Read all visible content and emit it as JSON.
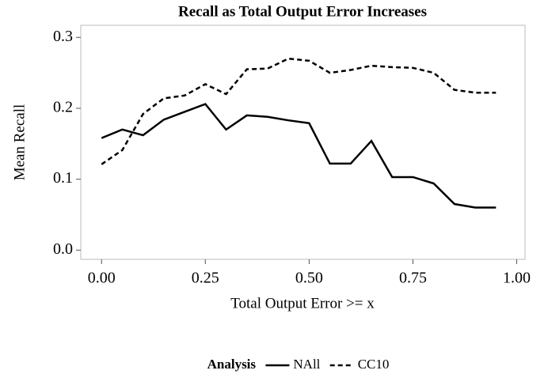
{
  "chart_data": {
    "type": "line",
    "title": "Recall as Total Output Error Increases",
    "xlabel": "Total Output Error >= x",
    "ylabel": "Mean Recall",
    "legend_title": "Analysis",
    "legend": "bottom",
    "grid": false,
    "x": [
      0,
      0.05,
      0.1,
      0.15,
      0.2,
      0.25,
      0.3,
      0.35,
      0.4,
      0.45,
      0.5,
      0.55,
      0.6,
      0.65,
      0.7,
      0.75,
      0.8,
      0.85,
      0.9,
      0.95
    ],
    "series": [
      {
        "name": "NAll",
        "color": "#000000",
        "dash": "solid",
        "values": [
          0.158,
          0.17,
          0.162,
          0.184,
          0.195,
          0.206,
          0.17,
          0.19,
          0.188,
          0.183,
          0.179,
          0.122,
          0.122,
          0.154,
          0.103,
          0.103,
          0.094,
          0.065,
          0.06,
          0.06
        ]
      },
      {
        "name": "CC10",
        "color": "#000000",
        "dash": "dashed",
        "values": [
          0.121,
          0.141,
          0.192,
          0.214,
          0.218,
          0.234,
          0.22,
          0.255,
          0.256,
          0.27,
          0.267,
          0.25,
          0.254,
          0.26,
          0.258,
          0.257,
          0.25,
          0.226,
          0.222,
          0.222
        ]
      }
    ],
    "xlim": [
      -0.05,
      1.02
    ],
    "xticks": [
      {
        "value": 0,
        "label": "0.00"
      },
      {
        "value": 0.25,
        "label": "0.25"
      },
      {
        "value": 0.5,
        "label": "0.50"
      },
      {
        "value": 0.75,
        "label": "0.75"
      },
      {
        "value": 1,
        "label": "1.00"
      }
    ],
    "ylim": [
      -0.013,
      0.317
    ],
    "yticks": [
      {
        "value": 0,
        "label": "0.0"
      },
      {
        "value": 0.1,
        "label": "0.1"
      },
      {
        "value": 0.2,
        "label": "0.2"
      },
      {
        "value": 0.3,
        "label": "0.3"
      }
    ]
  }
}
